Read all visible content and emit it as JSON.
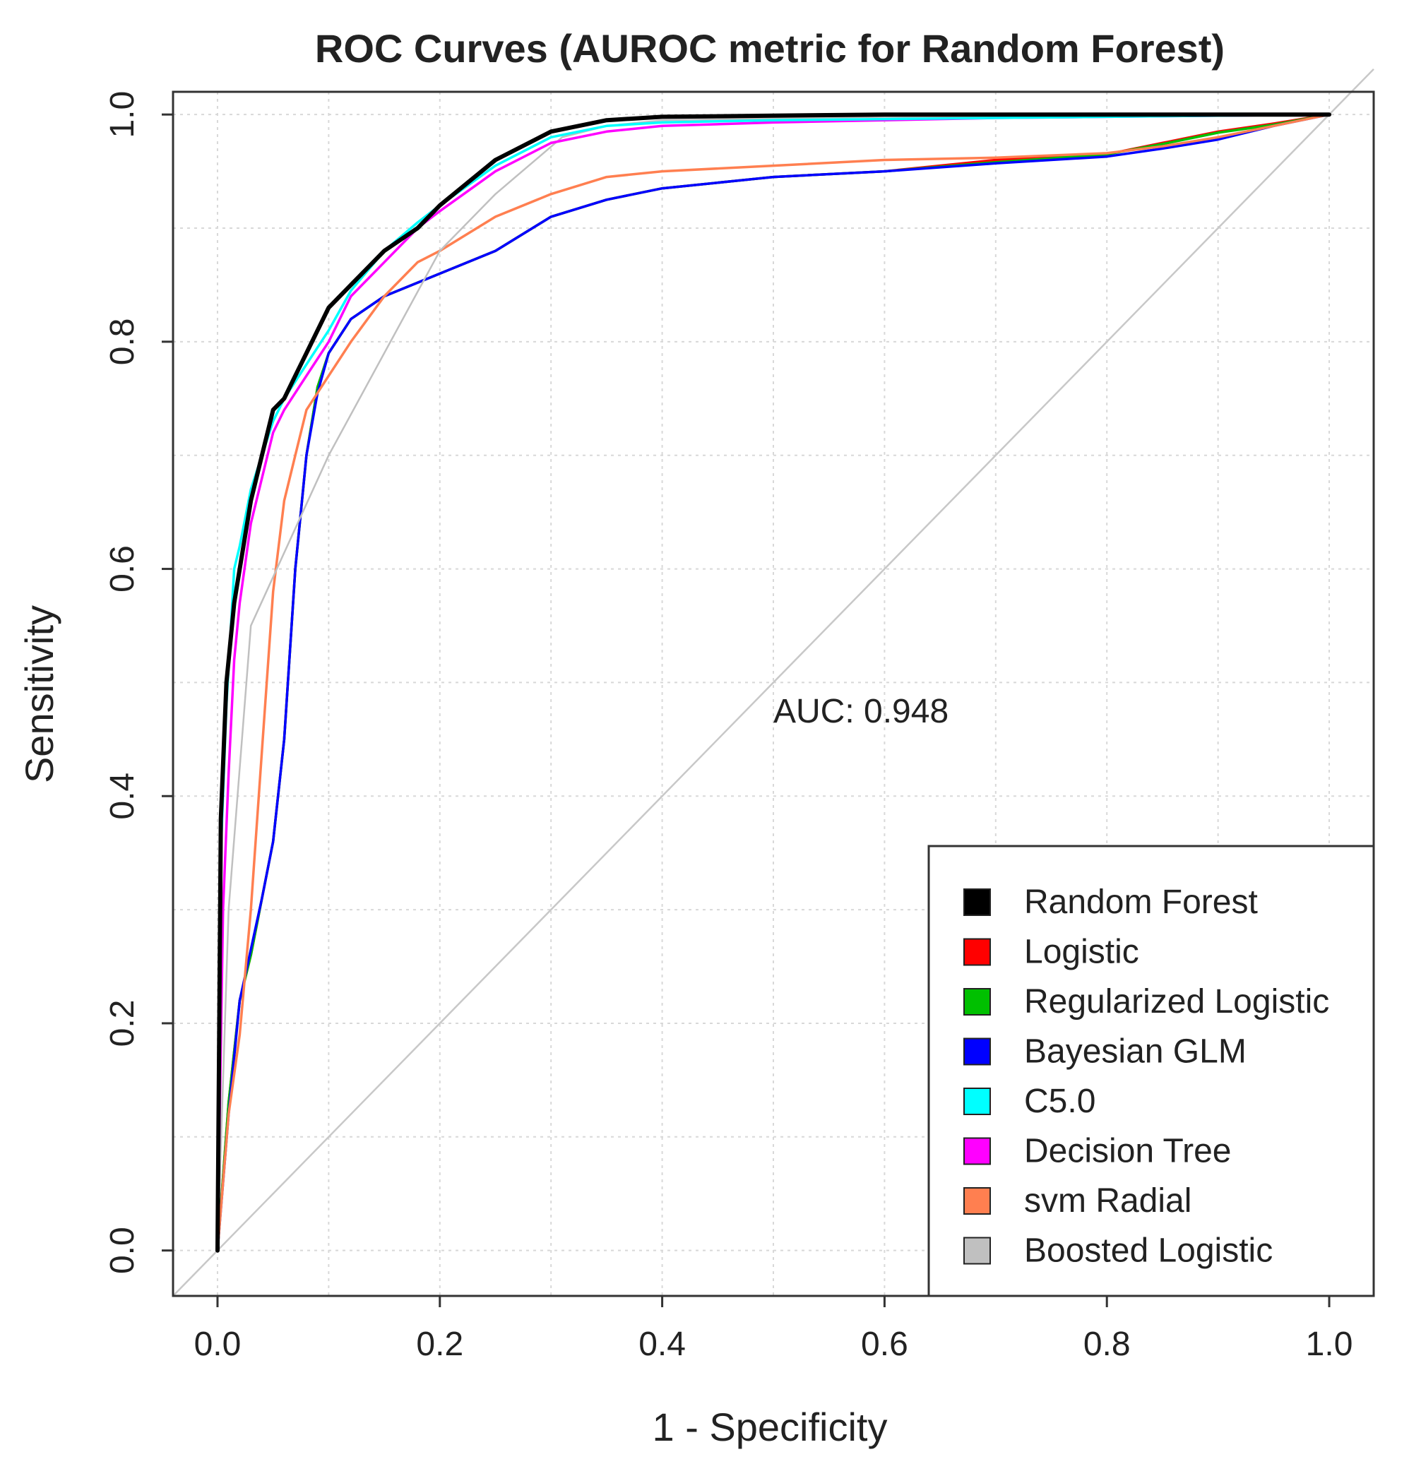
{
  "chart_data": {
    "type": "line",
    "title": "ROC Curves (AUROC metric for Random Forest)",
    "xlabel": "1 - Specificity",
    "ylabel": "Sensitivity",
    "xlim": [
      -0.04,
      1.04
    ],
    "ylim": [
      -0.04,
      1.02
    ],
    "xticks": [
      "0.0",
      "0.2",
      "0.4",
      "0.6",
      "0.8",
      "1.0"
    ],
    "yticks": [
      "0.0",
      "0.2",
      "0.4",
      "0.6",
      "0.8",
      "1.0"
    ],
    "grid": true,
    "legend_position": "bottom-right",
    "annotation": "AUC: 0.948",
    "reference_line": {
      "x": [
        -0.04,
        1.04
      ],
      "y": [
        -0.04,
        1.04
      ],
      "color": "#c8c8c8"
    },
    "series": [
      {
        "name": "Logistic",
        "color": "#ff0000",
        "x": [
          0,
          0.01,
          0.02,
          0.03,
          0.04,
          0.05,
          0.06,
          0.07,
          0.08,
          0.09,
          0.1,
          0.12,
          0.15,
          0.2,
          0.25,
          0.3,
          0.35,
          0.4,
          0.5,
          0.6,
          0.7,
          0.8,
          0.85,
          0.9,
          0.95,
          1.0
        ],
        "y": [
          0,
          0.13,
          0.22,
          0.26,
          0.31,
          0.36,
          0.45,
          0.6,
          0.7,
          0.76,
          0.79,
          0.82,
          0.84,
          0.86,
          0.88,
          0.91,
          0.925,
          0.935,
          0.945,
          0.95,
          0.96,
          0.965,
          0.975,
          0.985,
          0.992,
          1.0
        ]
      },
      {
        "name": "Regularized Logistic",
        "color": "#00c000",
        "x": [
          0,
          0.01,
          0.02,
          0.03,
          0.04,
          0.05,
          0.06,
          0.07,
          0.08,
          0.09,
          0.1,
          0.12,
          0.15,
          0.2,
          0.25,
          0.3,
          0.35,
          0.4,
          0.5,
          0.6,
          0.7,
          0.8,
          0.85,
          0.9,
          0.95,
          1.0
        ],
        "y": [
          0,
          0.13,
          0.22,
          0.26,
          0.31,
          0.36,
          0.45,
          0.6,
          0.7,
          0.76,
          0.79,
          0.82,
          0.84,
          0.86,
          0.88,
          0.91,
          0.925,
          0.935,
          0.945,
          0.95,
          0.958,
          0.965,
          0.974,
          0.984,
          0.991,
          1.0
        ]
      },
      {
        "name": "Bayesian GLM",
        "color": "#0000ff",
        "x": [
          0,
          0.01,
          0.02,
          0.03,
          0.04,
          0.05,
          0.06,
          0.07,
          0.08,
          0.09,
          0.1,
          0.12,
          0.15,
          0.2,
          0.25,
          0.3,
          0.35,
          0.4,
          0.5,
          0.6,
          0.7,
          0.8,
          0.85,
          0.9,
          0.95,
          1.0
        ],
        "y": [
          0,
          0.12,
          0.22,
          0.265,
          0.31,
          0.36,
          0.45,
          0.6,
          0.7,
          0.755,
          0.79,
          0.82,
          0.84,
          0.86,
          0.88,
          0.91,
          0.925,
          0.935,
          0.945,
          0.95,
          0.957,
          0.963,
          0.97,
          0.978,
          0.99,
          1.0
        ]
      },
      {
        "name": "svm Radial",
        "color": "#ff7f50",
        "x": [
          0,
          0.01,
          0.02,
          0.03,
          0.04,
          0.05,
          0.06,
          0.07,
          0.08,
          0.1,
          0.12,
          0.15,
          0.18,
          0.2,
          0.25,
          0.3,
          0.35,
          0.4,
          0.5,
          0.6,
          0.7,
          0.8,
          0.85,
          0.9,
          0.95,
          1.0
        ],
        "y": [
          0,
          0.12,
          0.19,
          0.3,
          0.44,
          0.58,
          0.66,
          0.7,
          0.74,
          0.77,
          0.8,
          0.84,
          0.87,
          0.88,
          0.91,
          0.93,
          0.945,
          0.95,
          0.955,
          0.96,
          0.962,
          0.966,
          0.972,
          0.98,
          0.99,
          1.0
        ]
      },
      {
        "name": "Boosted Logistic",
        "color": "#c0c0c0",
        "x": [
          0,
          0.01,
          0.03,
          0.1,
          0.2,
          0.25,
          0.31,
          0.35,
          0.4,
          0.6,
          0.8,
          1.0
        ],
        "y": [
          0,
          0.3,
          0.55,
          0.7,
          0.88,
          0.93,
          0.98,
          0.99,
          0.995,
          0.998,
          0.999,
          1.0
        ]
      },
      {
        "name": "Decision Tree",
        "color": "#ff00ff",
        "x": [
          0,
          0.005,
          0.01,
          0.015,
          0.02,
          0.03,
          0.04,
          0.05,
          0.06,
          0.08,
          0.1,
          0.12,
          0.15,
          0.18,
          0.2,
          0.25,
          0.3,
          0.35,
          0.4,
          0.5,
          0.6,
          0.7,
          0.8,
          0.9,
          1.0
        ],
        "y": [
          0,
          0.3,
          0.42,
          0.52,
          0.57,
          0.64,
          0.68,
          0.72,
          0.74,
          0.77,
          0.8,
          0.84,
          0.87,
          0.9,
          0.915,
          0.95,
          0.975,
          0.985,
          0.99,
          0.993,
          0.995,
          0.997,
          0.998,
          0.999,
          1.0
        ]
      },
      {
        "name": "C5.0",
        "color": "#00ffff",
        "x": [
          0,
          0.003,
          0.008,
          0.015,
          0.02,
          0.03,
          0.04,
          0.05,
          0.06,
          0.08,
          0.1,
          0.12,
          0.15,
          0.18,
          0.2,
          0.25,
          0.3,
          0.35,
          0.4,
          0.5,
          0.6,
          0.7,
          0.8,
          0.9,
          1.0
        ],
        "y": [
          0,
          0.35,
          0.48,
          0.6,
          0.62,
          0.67,
          0.7,
          0.73,
          0.75,
          0.78,
          0.81,
          0.845,
          0.88,
          0.905,
          0.92,
          0.955,
          0.98,
          0.99,
          0.993,
          0.995,
          0.996,
          0.997,
          0.998,
          0.999,
          1.0
        ]
      },
      {
        "name": "Random Forest",
        "color": "#000000",
        "x": [
          0,
          0.003,
          0.008,
          0.015,
          0.02,
          0.03,
          0.04,
          0.05,
          0.06,
          0.07,
          0.08,
          0.1,
          0.12,
          0.15,
          0.18,
          0.2,
          0.25,
          0.3,
          0.35,
          0.4,
          0.5,
          0.6,
          0.7,
          0.8,
          0.9,
          1.0
        ],
        "y": [
          0,
          0.38,
          0.5,
          0.57,
          0.6,
          0.66,
          0.7,
          0.74,
          0.75,
          0.77,
          0.79,
          0.83,
          0.85,
          0.88,
          0.9,
          0.92,
          0.96,
          0.985,
          0.995,
          0.998,
          0.999,
          1.0,
          1.0,
          1.0,
          1.0,
          1.0
        ]
      }
    ],
    "legend": [
      {
        "label": "Random Forest",
        "color": "#000000"
      },
      {
        "label": "Logistic",
        "color": "#ff0000"
      },
      {
        "label": "Regularized Logistic",
        "color": "#00c000"
      },
      {
        "label": "Bayesian GLM",
        "color": "#0000ff"
      },
      {
        "label": "C5.0",
        "color": "#00ffff"
      },
      {
        "label": "Decision Tree",
        "color": "#ff00ff"
      },
      {
        "label": "svm Radial",
        "color": "#ff7f50"
      },
      {
        "label": "Boosted Logistic",
        "color": "#c0c0c0"
      }
    ]
  }
}
